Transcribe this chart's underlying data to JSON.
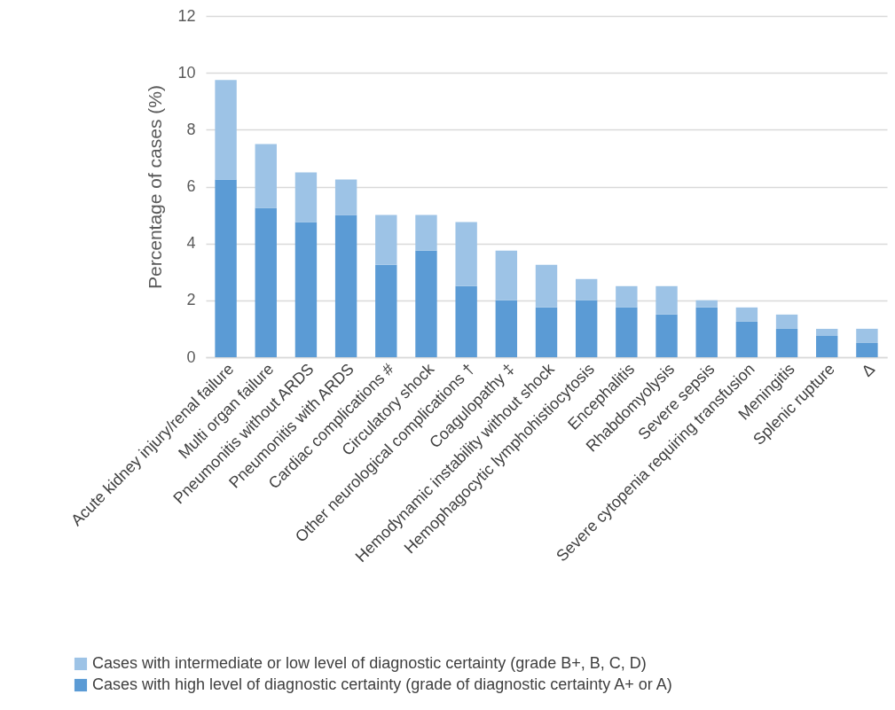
{
  "chart_data": {
    "type": "bar",
    "ylabel": "Percentage of cases (%)",
    "categories": [
      "Acute kidney injury/renal failure",
      "Multi organ failure",
      "Pneumonitis without ARDS",
      "Pneumonitis with ARDS",
      "Cardiac complications #",
      "Circulatory shock",
      "Other neurological complications †",
      "Coagulopathy ‡",
      "Hemodynamic instability without shock",
      "Hemophagocytic lymphohistiocytosis",
      "Encephalitis",
      "Rhabdomyolysis",
      "Severe sepsis",
      "Severe cytopenia requiring transfusion",
      "Meningitis",
      "Splenic rupture",
      "Δ"
    ],
    "series": [
      {
        "name": "Cases with high level of diagnostic certainty (grade of diagnostic certainty A+ or A)",
        "color": "#5b9bd5",
        "values": [
          6.25,
          5.25,
          4.75,
          5,
          3.25,
          3.75,
          2.5,
          2,
          1.75,
          2,
          1.75,
          1.5,
          1.75,
          1.25,
          1,
          0.75,
          0.5
        ]
      },
      {
        "name": "Cases with intermediate or low level of diagnostic certainty (grade B+, B, C, D)",
        "color": "#9dc3e6",
        "values": [
          3.5,
          2.25,
          1.75,
          1.25,
          1.75,
          1.25,
          2.25,
          1.75,
          1.5,
          0.75,
          0.75,
          1,
          0.25,
          0.5,
          0.5,
          0.25,
          0.5
        ]
      }
    ],
    "stacked": true,
    "ylim": [
      0,
      12
    ],
    "yticks": [
      0,
      2,
      4,
      6,
      8,
      10,
      12
    ],
    "grid": "y",
    "legend": "bottom"
  }
}
